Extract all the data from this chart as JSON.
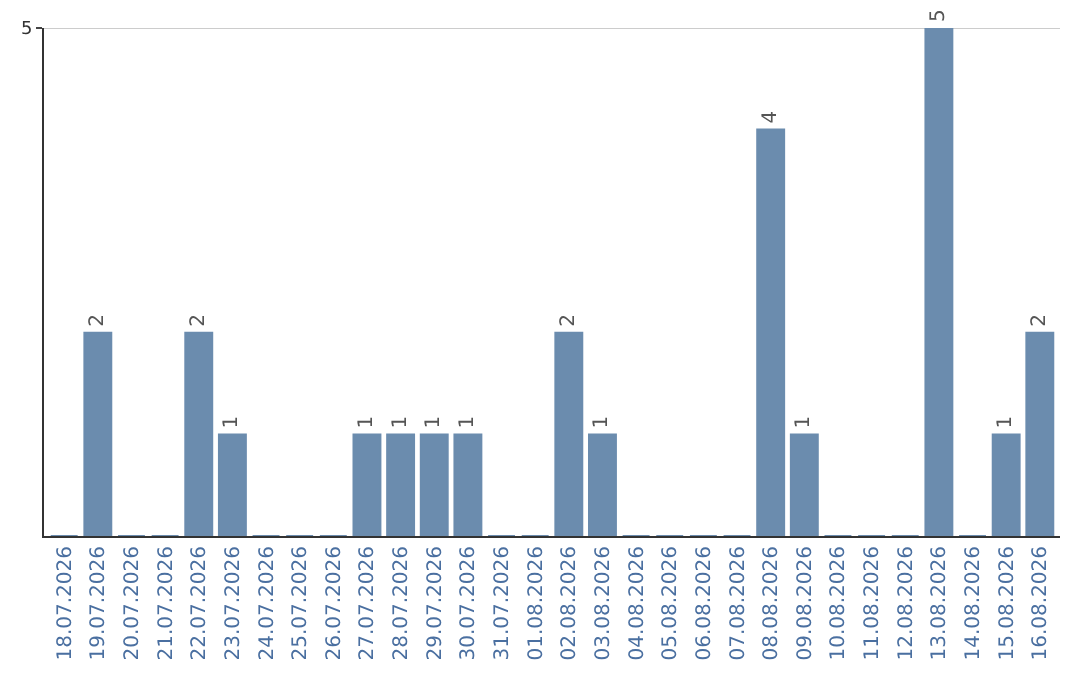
{
  "chart_data": {
    "type": "bar",
    "categories": [
      "18.07.2026",
      "19.07.2026",
      "20.07.2026",
      "21.07.2026",
      "22.07.2026",
      "23.07.2026",
      "24.07.2026",
      "25.07.2026",
      "26.07.2026",
      "27.07.2026",
      "28.07.2026",
      "29.07.2026",
      "30.07.2026",
      "31.07.2026",
      "01.08.2026",
      "02.08.2026",
      "03.08.2026",
      "04.08.2026",
      "05.08.2026",
      "06.08.2026",
      "07.08.2026",
      "08.08.2026",
      "09.08.2026",
      "10.08.2026",
      "11.08.2026",
      "12.08.2026",
      "13.08.2026",
      "14.08.2026",
      "15.08.2026",
      "16.08.2026"
    ],
    "values": [
      0,
      2,
      0,
      0,
      2,
      1,
      0,
      0,
      0,
      1,
      1,
      1,
      1,
      0,
      0,
      2,
      1,
      0,
      0,
      0,
      0,
      4,
      1,
      0,
      0,
      0,
      5,
      0,
      1,
      2
    ],
    "value_labels": [
      null,
      "2",
      null,
      null,
      "2",
      "1",
      null,
      null,
      null,
      "1",
      "1",
      "1",
      "1",
      null,
      null,
      "2",
      "1",
      null,
      null,
      null,
      null,
      "4",
      "1",
      null,
      null,
      null,
      "5",
      null,
      "1",
      "2"
    ],
    "color": "#6b8cae",
    "ylim": [
      0,
      5
    ],
    "yticks": [
      5
    ],
    "ref_lines": [
      {
        "axis": "y",
        "value": 5,
        "color": "#cccccc"
      }
    ],
    "legend": false
  }
}
